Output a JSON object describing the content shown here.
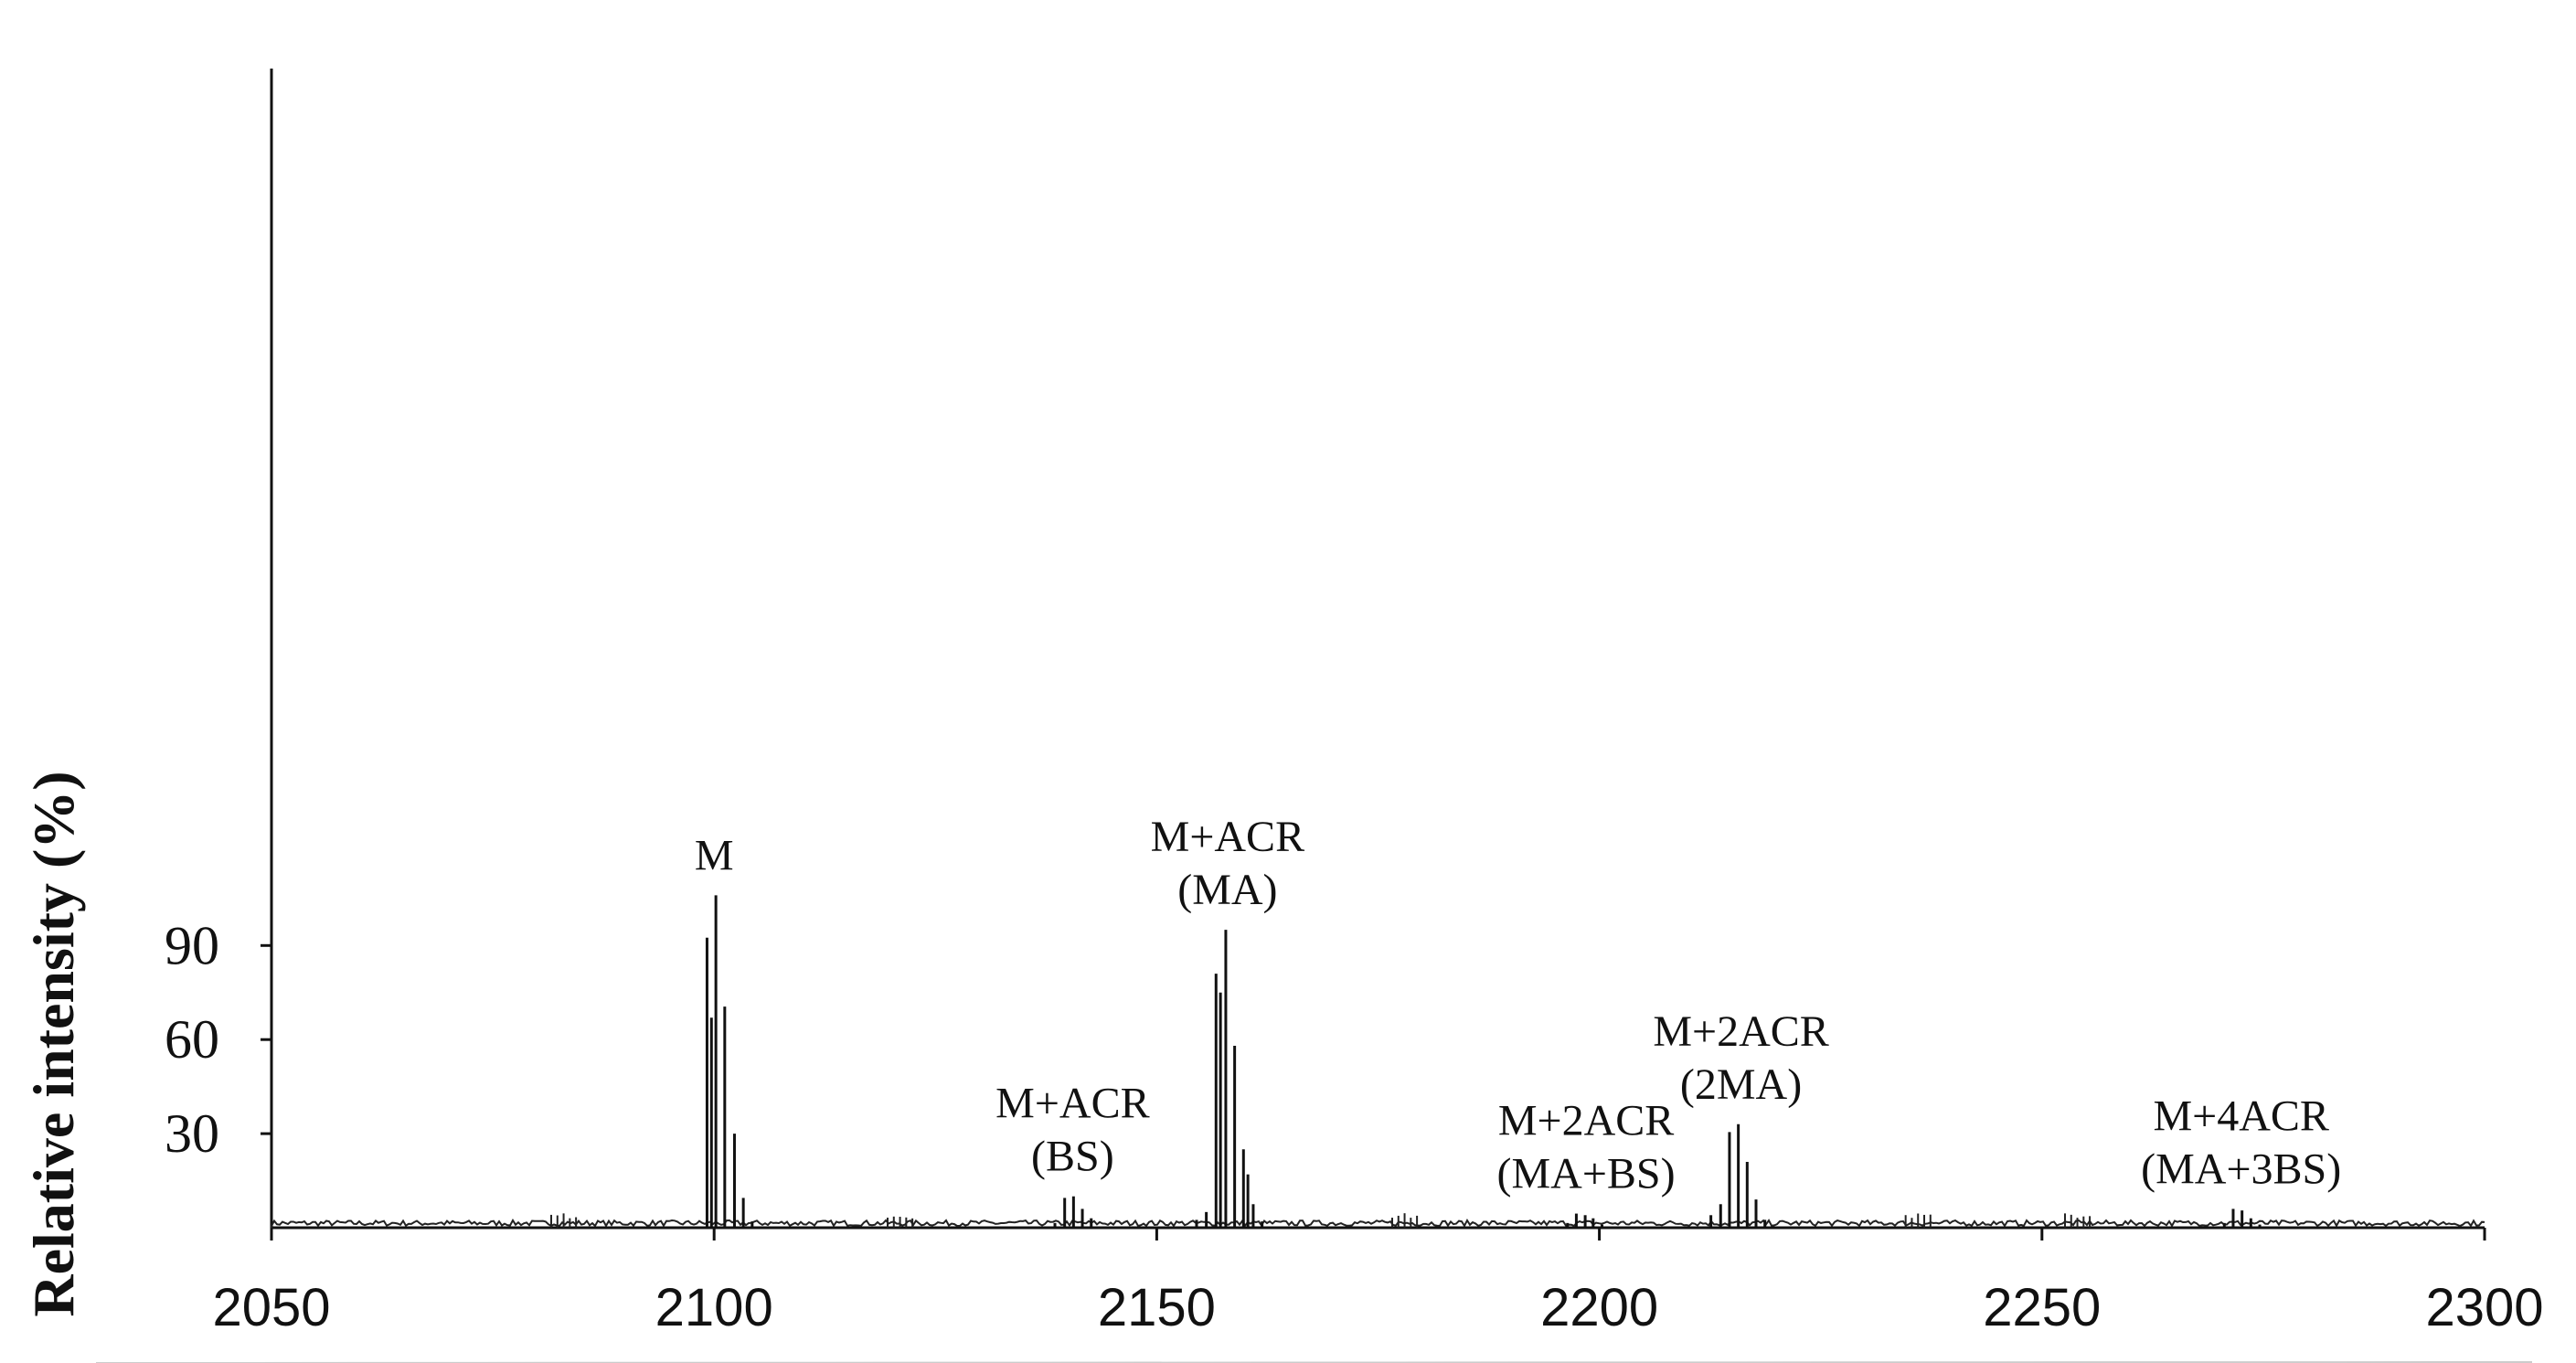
{
  "chart_data": {
    "type": "line",
    "title": "",
    "xlabel": "",
    "ylabel": "Relative intensity (%)",
    "xlim": [
      2050,
      2300
    ],
    "ylim": [
      0,
      100
    ],
    "x_ticks": [
      2050,
      2100,
      2150,
      2200,
      2250,
      2300
    ],
    "y_ticks": [
      30,
      60,
      90
    ],
    "grid": false,
    "series": [
      {
        "values": [
          [
            2099.2,
            92.5
          ],
          [
            2099.7,
            67
          ],
          [
            2100.2,
            106
          ],
          [
            2101.2,
            70.5
          ],
          [
            2102.3,
            30
          ],
          [
            2103.3,
            9.5
          ],
          [
            2104.3,
            2
          ],
          [
            2138.5,
            1.5
          ],
          [
            2139.6,
            9.5
          ],
          [
            2140.6,
            10
          ],
          [
            2141.6,
            6
          ],
          [
            2142.6,
            3
          ],
          [
            2154.5,
            2.5
          ],
          [
            2155.6,
            5
          ],
          [
            2156.7,
            81
          ],
          [
            2157.2,
            75
          ],
          [
            2157.8,
            95
          ],
          [
            2158.8,
            58
          ],
          [
            2159.8,
            25
          ],
          [
            2160.3,
            17
          ],
          [
            2160.9,
            7.5
          ],
          [
            2161.9,
            2
          ],
          [
            2196.4,
            1.5
          ],
          [
            2197.4,
            4.5
          ],
          [
            2198.4,
            4
          ],
          [
            2199.3,
            3
          ],
          [
            2200.3,
            1
          ],
          [
            2212.6,
            4
          ],
          [
            2213.7,
            7.5
          ],
          [
            2214.7,
            30.5
          ],
          [
            2215.7,
            33
          ],
          [
            2216.7,
            21
          ],
          [
            2217.7,
            9
          ],
          [
            2218.7,
            2.5
          ],
          [
            2270.6,
            1.5
          ],
          [
            2271.6,
            6
          ],
          [
            2272.6,
            5.5
          ],
          [
            2273.6,
            3
          ],
          [
            2274.6,
            1
          ]
        ]
      }
    ],
    "annotations": [
      {
        "lines": [
          "M"
        ],
        "x": 2100
      },
      {
        "lines": [
          "M+ACR",
          "(BS)"
        ],
        "x": 2140.5
      },
      {
        "lines": [
          "M+ACR",
          "(MA)"
        ],
        "x": 2158
      },
      {
        "lines": [
          "M+2ACR",
          "(MA+BS)"
        ],
        "x": 2198.5
      },
      {
        "lines": [
          "M+2ACR",
          "(2MA)"
        ],
        "x": 2216
      },
      {
        "lines": [
          "M+4ACR",
          "(MA+3BS)"
        ],
        "x": 2272.5
      }
    ]
  }
}
